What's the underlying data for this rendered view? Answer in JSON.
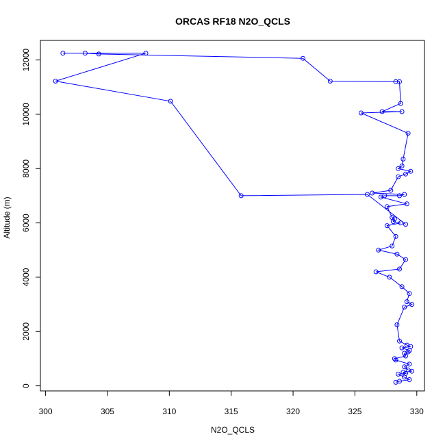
{
  "chart_data": {
    "type": "line",
    "title": "ORCAS RF18 N2O_QCLS",
    "xlabel": "N2O_QCLS",
    "ylabel": "Altitude (m)",
    "xlim": [
      300,
      330
    ],
    "ylim": [
      0,
      12500
    ],
    "x_ticks": [
      300,
      305,
      310,
      315,
      320,
      325,
      330
    ],
    "y_ticks": [
      0,
      2000,
      4000,
      6000,
      8000,
      10000,
      12000
    ],
    "x_tick_labels": [
      "300",
      "305",
      "310",
      "315",
      "320",
      "325",
      "330"
    ],
    "y_tick_labels": [
      "0",
      "2000",
      "4000",
      "6000",
      "8000",
      "10000",
      "12000"
    ],
    "colors": {
      "series": "#0000ff",
      "axis": "#000000"
    },
    "grid": false,
    "markers": "open-circle",
    "series": [
      {
        "x": [
          328.3,
          328.6,
          329.4,
          329.0,
          328.5,
          329.1,
          328.9,
          329.6,
          329.3,
          329.0,
          329.4,
          328.3,
          328.2,
          329.1,
          329.0,
          329.3,
          329.4,
          328.8,
          329.5,
          329.2,
          328.6,
          328.4,
          329.0,
          329.6,
          329.2,
          329.4,
          328.8,
          327.8,
          326.7,
          328.6,
          329.1,
          328.4,
          326.9,
          328.0,
          328.3,
          327.6,
          328.7,
          328.1,
          328.2,
          328.0,
          327.6,
          329.2,
          327.1,
          327.4,
          328.6,
          329.0,
          326.4,
          327.9,
          328.5,
          329.1,
          329.5,
          328.5,
          328.8,
          328.9,
          329.3,
          325.5,
          328.8,
          327.2,
          328.7,
          328.6,
          328.3,
          323.0,
          320.8,
          304.3,
          303.2,
          301.4,
          308.1,
          300.8,
          310.1,
          315.8,
          326.0,
          329.1
        ],
        "y": [
          130,
          170,
          230,
          320,
          430,
          460,
          500,
          540,
          590,
          700,
          800,
          950,
          1000,
          1100,
          1200,
          1250,
          1300,
          1400,
          1450,
          1500,
          1650,
          2250,
          2900,
          3000,
          3100,
          3400,
          3650,
          4000,
          4200,
          4300,
          4650,
          4850,
          5000,
          5150,
          5500,
          5900,
          6000,
          6050,
          6150,
          6200,
          6600,
          6700,
          6950,
          7000,
          7000,
          7050,
          7100,
          7200,
          7700,
          7800,
          7900,
          8000,
          8100,
          8350,
          9300,
          10050,
          10100,
          10100,
          10400,
          11200,
          11200,
          11220,
          12060,
          12220,
          12250,
          12250,
          12250,
          11220,
          10480,
          7000,
          7050,
          5950
        ]
      }
    ]
  }
}
